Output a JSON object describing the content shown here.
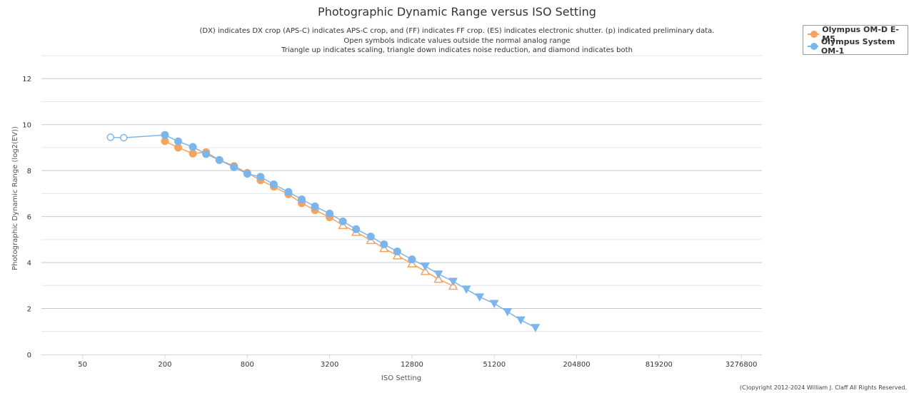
{
  "chart_data": {
    "type": "line",
    "title": "Photographic Dynamic Range versus ISO Setting",
    "subtitle_lines": [
      "(DX) indicates DX crop (APS-C) indicates APS-C crop, and (FF) indicates FF crop. (ES) indicates electronic shutter. (p) indicated preliminary data.",
      "Open symbols indicate values outside the normal analog range",
      "Triangle up indicates scaling, triangle down indicates noise reduction, and diamond indicates both"
    ],
    "xlabel": "ISO Setting",
    "ylabel": "Photographic Dynamic Range (log2(EV))",
    "x_scale": "log2",
    "xlim": [
      25,
      4634000
    ],
    "x_ticks": [
      50,
      200,
      800,
      3200,
      12800,
      51200,
      204800,
      819200,
      3276800
    ],
    "ylim": [
      0,
      13
    ],
    "y_ticks": [
      0,
      2,
      4,
      6,
      8,
      10,
      12
    ],
    "grid": true,
    "legend_position": "top-right",
    "series": [
      {
        "name": "Olympus OM-D E-M5",
        "color": "#f7a35c",
        "points": [
          {
            "x": 200,
            "y": 9.28,
            "marker": "circle"
          },
          {
            "x": 250,
            "y": 9.0,
            "marker": "circle"
          },
          {
            "x": 320,
            "y": 8.74,
            "marker": "circle"
          },
          {
            "x": 400,
            "y": 8.8,
            "marker": "circle"
          },
          {
            "x": 500,
            "y": 8.46,
            "marker": "circle"
          },
          {
            "x": 640,
            "y": 8.2,
            "marker": "circle"
          },
          {
            "x": 800,
            "y": 7.9,
            "marker": "circle"
          },
          {
            "x": 1000,
            "y": 7.58,
            "marker": "circle"
          },
          {
            "x": 1250,
            "y": 7.3,
            "marker": "circle"
          },
          {
            "x": 1600,
            "y": 6.97,
            "marker": "circle"
          },
          {
            "x": 2000,
            "y": 6.58,
            "marker": "circle"
          },
          {
            "x": 2500,
            "y": 6.28,
            "marker": "circle"
          },
          {
            "x": 3200,
            "y": 5.97,
            "marker": "circle"
          },
          {
            "x": 4000,
            "y": 5.62,
            "marker": "triangle-up-open"
          },
          {
            "x": 5000,
            "y": 5.32,
            "marker": "triangle-up-open"
          },
          {
            "x": 6400,
            "y": 4.97,
            "marker": "triangle-up-open"
          },
          {
            "x": 8000,
            "y": 4.62,
            "marker": "triangle-up-open"
          },
          {
            "x": 10000,
            "y": 4.3,
            "marker": "triangle-up-open"
          },
          {
            "x": 12800,
            "y": 3.95,
            "marker": "triangle-up-open"
          },
          {
            "x": 16000,
            "y": 3.62,
            "marker": "triangle-up-open"
          },
          {
            "x": 20000,
            "y": 3.28,
            "marker": "triangle-up-open"
          },
          {
            "x": 25600,
            "y": 2.98,
            "marker": "triangle-up-open"
          }
        ]
      },
      {
        "name": "Olympus System OM-1",
        "color": "#7cb5ec",
        "points": [
          {
            "x": 80,
            "y": 9.45,
            "marker": "circle-open"
          },
          {
            "x": 100,
            "y": 9.43,
            "marker": "circle-open"
          },
          {
            "x": 200,
            "y": 9.55,
            "marker": "circle"
          },
          {
            "x": 250,
            "y": 9.27,
            "marker": "circle"
          },
          {
            "x": 320,
            "y": 9.03,
            "marker": "circle"
          },
          {
            "x": 400,
            "y": 8.72,
            "marker": "circle"
          },
          {
            "x": 500,
            "y": 8.46,
            "marker": "circle"
          },
          {
            "x": 640,
            "y": 8.15,
            "marker": "circle"
          },
          {
            "x": 800,
            "y": 7.86,
            "marker": "circle"
          },
          {
            "x": 1000,
            "y": 7.73,
            "marker": "circle"
          },
          {
            "x": 1250,
            "y": 7.4,
            "marker": "circle"
          },
          {
            "x": 1600,
            "y": 7.07,
            "marker": "circle"
          },
          {
            "x": 2000,
            "y": 6.75,
            "marker": "circle"
          },
          {
            "x": 2500,
            "y": 6.44,
            "marker": "circle"
          },
          {
            "x": 3200,
            "y": 6.13,
            "marker": "circle"
          },
          {
            "x": 4000,
            "y": 5.79,
            "marker": "circle"
          },
          {
            "x": 5000,
            "y": 5.45,
            "marker": "circle"
          },
          {
            "x": 6400,
            "y": 5.13,
            "marker": "circle"
          },
          {
            "x": 8000,
            "y": 4.79,
            "marker": "circle"
          },
          {
            "x": 10000,
            "y": 4.48,
            "marker": "circle"
          },
          {
            "x": 12800,
            "y": 4.14,
            "marker": "circle"
          },
          {
            "x": 16000,
            "y": 3.84,
            "marker": "triangle-down"
          },
          {
            "x": 20000,
            "y": 3.5,
            "marker": "triangle-down"
          },
          {
            "x": 25600,
            "y": 3.18,
            "marker": "triangle-down"
          },
          {
            "x": 32000,
            "y": 2.84,
            "marker": "triangle-down"
          },
          {
            "x": 40000,
            "y": 2.5,
            "marker": "triangle-down"
          },
          {
            "x": 51200,
            "y": 2.22,
            "marker": "triangle-down"
          },
          {
            "x": 64000,
            "y": 1.86,
            "marker": "triangle-down"
          },
          {
            "x": 80000,
            "y": 1.5,
            "marker": "triangle-down"
          },
          {
            "x": 102400,
            "y": 1.17,
            "marker": "triangle-down"
          }
        ]
      }
    ]
  },
  "copyright": "(C)opyright 2012-2024 William J. Claff All Rights Reserved."
}
